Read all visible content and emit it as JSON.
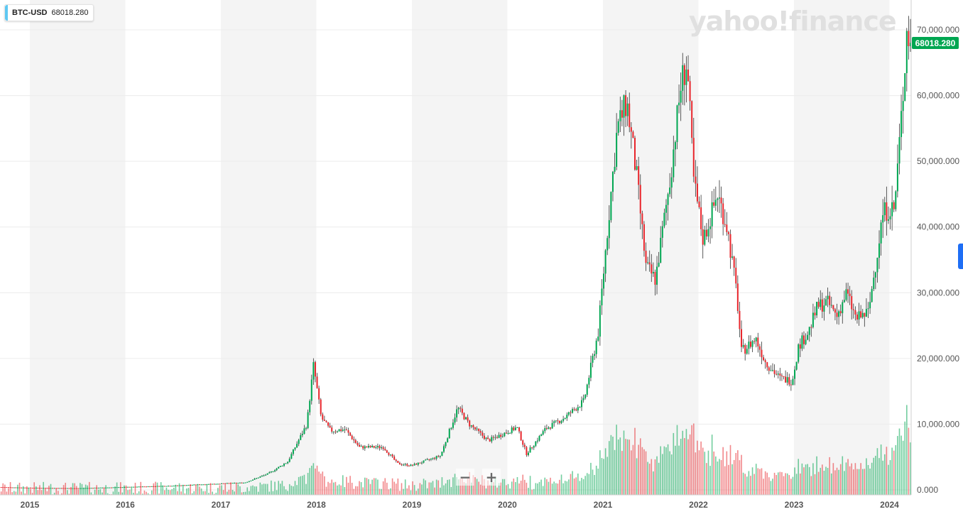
{
  "ticker": {
    "symbol": "BTC-USD",
    "value": "68018.280",
    "swatch_color": "#5ec8f2"
  },
  "watermark": "yahoo!finance",
  "last_price_label": "68018.280",
  "zoom": {
    "minus": "−",
    "plus": "+"
  },
  "colors": {
    "up": "#00a651",
    "down": "#e8262c",
    "shade": "#f4f4f4",
    "grid": "#ececec",
    "axis_text": "#555555"
  },
  "chart_data": {
    "type": "candlestick",
    "title": "",
    "xlabel": "",
    "ylabel": "",
    "grid": true,
    "yaxis_position": "right",
    "ylim": [
      0,
      74000
    ],
    "x_ticks": [
      "2015",
      "2016",
      "2017",
      "2018",
      "2019",
      "2020",
      "2021",
      "2022",
      "2023",
      "2024"
    ],
    "y_ticks": [
      "0.000",
      "10,000.000",
      "20,000.000",
      "30,000.000",
      "40,000.000",
      "50,000.000",
      "60,000.000",
      "70,000.000"
    ],
    "y_tick_values": [
      0,
      10000,
      20000,
      30000,
      40000,
      50000,
      60000,
      70000
    ],
    "close_anchors": [
      [
        2014.7,
        420
      ],
      [
        2015.0,
        320
      ],
      [
        2015.5,
        250
      ],
      [
        2016.0,
        430
      ],
      [
        2016.5,
        640
      ],
      [
        2017.0,
        960
      ],
      [
        2017.25,
        1100
      ],
      [
        2017.5,
        2500
      ],
      [
        2017.7,
        4300
      ],
      [
        2017.9,
        10000
      ],
      [
        2017.97,
        19000
      ],
      [
        2018.05,
        11000
      ],
      [
        2018.15,
        9000
      ],
      [
        2018.3,
        9200
      ],
      [
        2018.45,
        6500
      ],
      [
        2018.7,
        6500
      ],
      [
        2018.85,
        4000
      ],
      [
        2019.0,
        3700
      ],
      [
        2019.3,
        5200
      ],
      [
        2019.48,
        12500
      ],
      [
        2019.6,
        10000
      ],
      [
        2019.8,
        7500
      ],
      [
        2020.1,
        9500
      ],
      [
        2020.2,
        5500
      ],
      [
        2020.4,
        9300
      ],
      [
        2020.6,
        11000
      ],
      [
        2020.8,
        13500
      ],
      [
        2020.95,
        24000
      ],
      [
        2021.05,
        40000
      ],
      [
        2021.15,
        55000
      ],
      [
        2021.25,
        59000
      ],
      [
        2021.35,
        48000
      ],
      [
        2021.45,
        34000
      ],
      [
        2021.55,
        32000
      ],
      [
        2021.7,
        47000
      ],
      [
        2021.82,
        62000
      ],
      [
        2021.88,
        65000
      ],
      [
        2021.95,
        47000
      ],
      [
        2022.05,
        38000
      ],
      [
        2022.2,
        45000
      ],
      [
        2022.3,
        40000
      ],
      [
        2022.4,
        30000
      ],
      [
        2022.45,
        21000
      ],
      [
        2022.6,
        23000
      ],
      [
        2022.7,
        19500
      ],
      [
        2022.85,
        17000
      ],
      [
        2022.98,
        16600
      ],
      [
        2023.05,
        22000
      ],
      [
        2023.15,
        24000
      ],
      [
        2023.25,
        28000
      ],
      [
        2023.35,
        28500
      ],
      [
        2023.45,
        26500
      ],
      [
        2023.55,
        30000
      ],
      [
        2023.65,
        26000
      ],
      [
        2023.78,
        27000
      ],
      [
        2023.85,
        34000
      ],
      [
        2023.93,
        42000
      ],
      [
        2024.0,
        43000
      ],
      [
        2024.05,
        42500
      ],
      [
        2024.1,
        52000
      ],
      [
        2024.15,
        62000
      ],
      [
        2024.18,
        70000
      ],
      [
        2024.22,
        68018
      ]
    ],
    "volume_scale": 17000
  }
}
